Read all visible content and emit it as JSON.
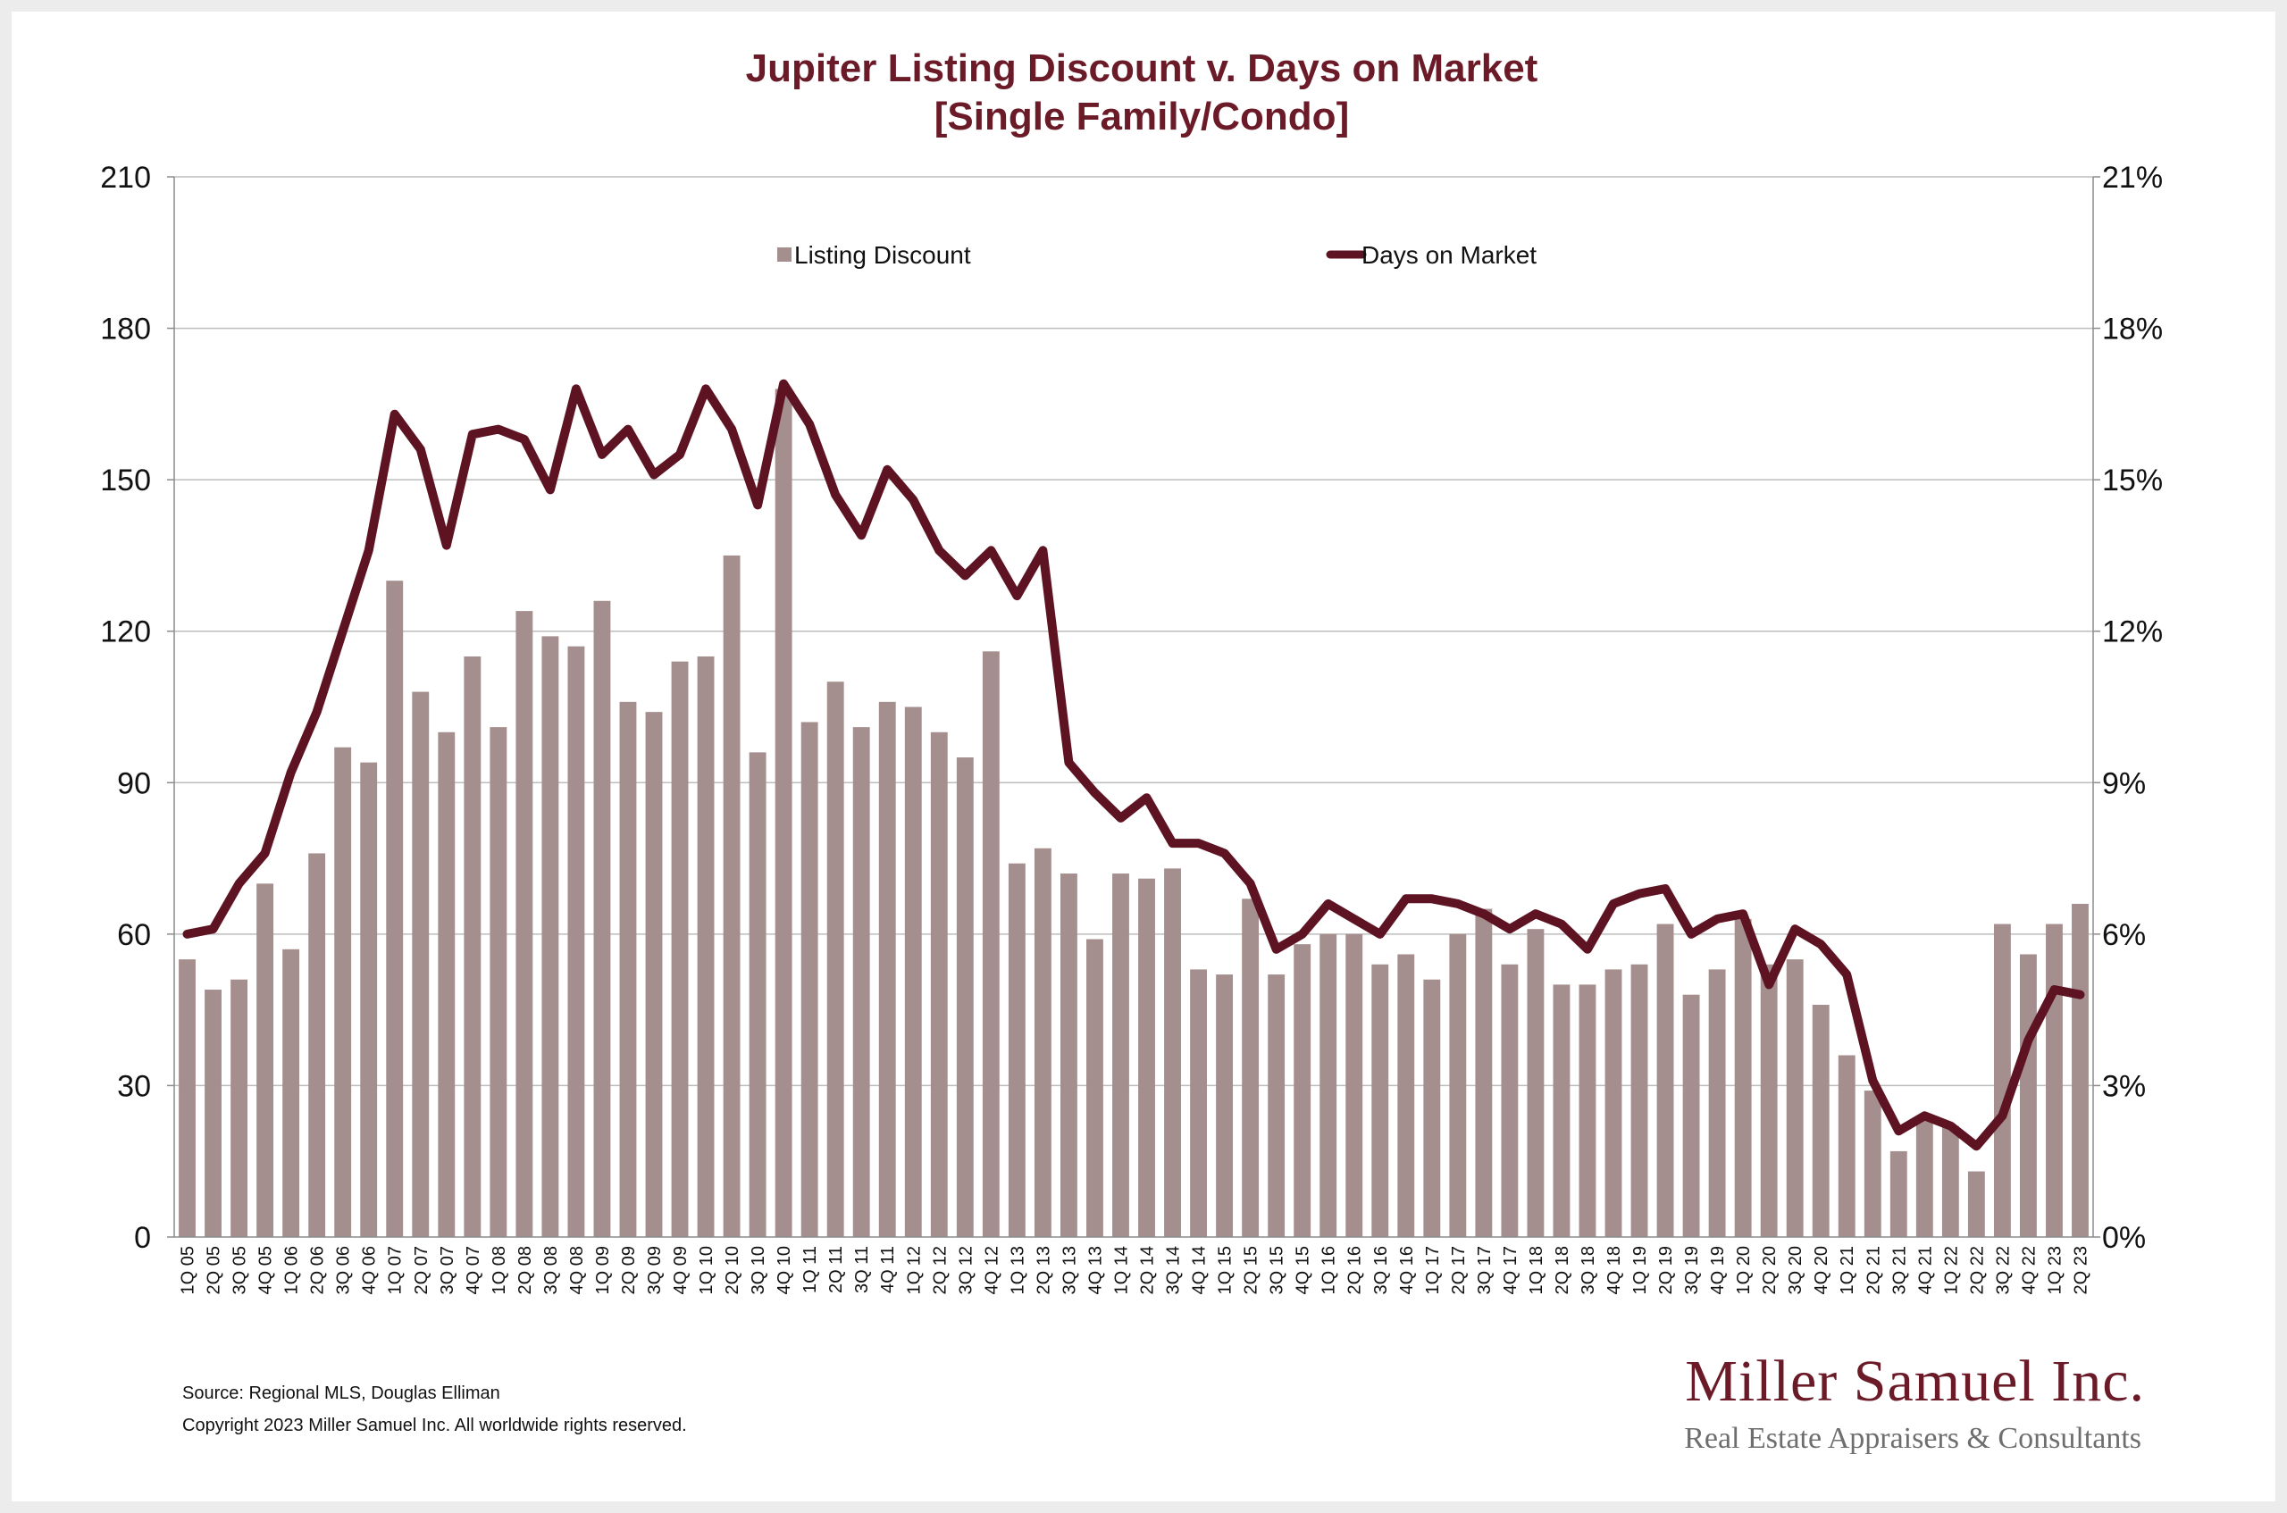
{
  "colors": {
    "bar": "#a58f8e",
    "line": "#5e1323",
    "title": "#6b1a28",
    "grid": "#bdbdbd",
    "axis": "#8c8c8c"
  },
  "chart_data": {
    "type": "bar",
    "title": "Jupiter Listing Discount v. Days on Market",
    "subtitle": "[Single Family/Condo]",
    "categories": [
      "1Q 05",
      "2Q 05",
      "3Q 05",
      "4Q 05",
      "1Q 06",
      "2Q 06",
      "3Q 06",
      "4Q 06",
      "1Q 07",
      "2Q 07",
      "3Q 07",
      "4Q 07",
      "1Q 08",
      "2Q 08",
      "3Q 08",
      "4Q 08",
      "1Q 09",
      "2Q 09",
      "3Q 09",
      "4Q 09",
      "1Q 10",
      "2Q 10",
      "3Q 10",
      "4Q 10",
      "1Q 11",
      "2Q 11",
      "3Q 11",
      "4Q 11",
      "1Q 12",
      "2Q 12",
      "3Q 12",
      "4Q 12",
      "1Q 13",
      "2Q 13",
      "3Q 13",
      "4Q 13",
      "1Q 14",
      "2Q 14",
      "3Q 14",
      "4Q 14",
      "1Q 15",
      "2Q 15",
      "3Q 15",
      "4Q 15",
      "1Q 16",
      "2Q 16",
      "3Q 16",
      "4Q 16",
      "1Q 17",
      "2Q 17",
      "3Q 17",
      "4Q 17",
      "1Q 18",
      "2Q 18",
      "3Q 18",
      "4Q 18",
      "1Q 19",
      "2Q 19",
      "3Q 19",
      "4Q 19",
      "1Q 20",
      "2Q 20",
      "3Q 20",
      "4Q 20",
      "1Q 21",
      "2Q 21",
      "3Q 21",
      "4Q 21",
      "1Q 22",
      "2Q 22",
      "3Q 22",
      "4Q 22",
      "1Q 23",
      "2Q 23"
    ],
    "series": [
      {
        "name": "Listing Discount",
        "type": "bar",
        "axis": "right",
        "unit": "%",
        "values": [
          5.5,
          4.9,
          5.1,
          7.0,
          5.7,
          7.6,
          9.7,
          9.4,
          13.0,
          10.8,
          10.0,
          11.5,
          10.1,
          12.4,
          11.9,
          11.7,
          12.6,
          10.6,
          10.4,
          11.4,
          11.5,
          13.5,
          9.6,
          16.8,
          10.2,
          11.0,
          10.1,
          10.6,
          10.5,
          10.0,
          9.5,
          11.6,
          7.4,
          7.7,
          7.2,
          5.9,
          7.2,
          7.1,
          7.3,
          5.3,
          5.2,
          6.7,
          5.2,
          5.8,
          6.0,
          6.0,
          5.4,
          5.6,
          5.1,
          6.0,
          6.5,
          5.4,
          6.1,
          5.0,
          5.0,
          5.3,
          5.4,
          6.2,
          4.8,
          5.3,
          6.3,
          5.4,
          5.5,
          4.6,
          3.6,
          2.9,
          1.7,
          2.4,
          2.2,
          1.3,
          6.2,
          5.6,
          6.2,
          6.6
        ]
      },
      {
        "name": "Days on Market",
        "type": "line",
        "axis": "left",
        "values": [
          60,
          61,
          70,
          76,
          92,
          104,
          120,
          136,
          163,
          156,
          137,
          159,
          160,
          158,
          148,
          168,
          155,
          160,
          151,
          155,
          168,
          160,
          145,
          169,
          161,
          147,
          139,
          152,
          146,
          136,
          131,
          136,
          127,
          136,
          94,
          88,
          83,
          87,
          78,
          78,
          76,
          70,
          57,
          60,
          66,
          63,
          60,
          67,
          67,
          66,
          64,
          61,
          64,
          62,
          57,
          66,
          68,
          69,
          60,
          63,
          64,
          50,
          61,
          58,
          52,
          31,
          21,
          24,
          22,
          18,
          24,
          39,
          49,
          48
        ]
      }
    ],
    "y_left": {
      "min": 0,
      "max": 210,
      "ticks": [
        "0",
        "30",
        "60",
        "90",
        "120",
        "150",
        "180",
        "210"
      ]
    },
    "y_right": {
      "min": 0,
      "max": 21,
      "ticks": [
        "0%",
        "3%",
        "6%",
        "9%",
        "12%",
        "15%",
        "18%",
        "21%"
      ]
    },
    "grid": true,
    "legend_position": "top"
  },
  "footer": {
    "source": "Source: Regional MLS, Douglas Elliman",
    "copyright": "Copyright 2023 Miller Samuel Inc. All worldwide rights reserved."
  },
  "logo": {
    "name": "Miller Samuel Inc.",
    "tagline": "Real Estate Appraisers & Consultants"
  }
}
